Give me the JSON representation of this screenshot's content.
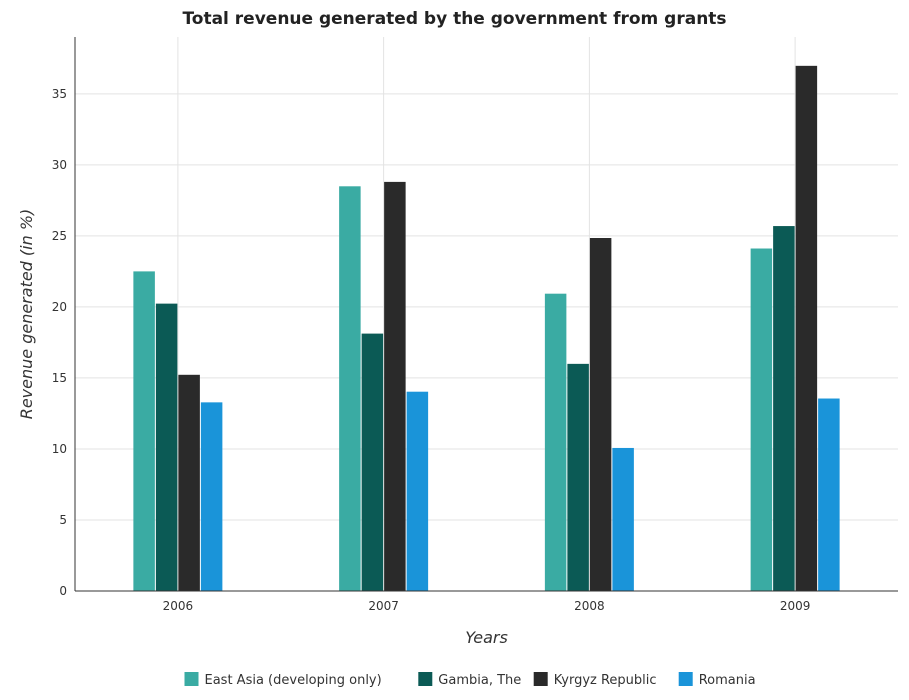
{
  "chart_data": {
    "type": "bar",
    "title": "Total revenue generated by the government from grants",
    "xlabel": "Years",
    "ylabel": "Revenue generated (in %)",
    "categories": [
      "2006",
      "2007",
      "2008",
      "2009"
    ],
    "ylim": [
      0,
      39
    ],
    "yticks": [
      0,
      5,
      10,
      15,
      20,
      25,
      30,
      35
    ],
    "grid": true,
    "legend_position": "bottom",
    "series": [
      {
        "name": "East Asia (developing only)",
        "color": "#3aaba3",
        "values": [
          22.5,
          28.49,
          20.93,
          24.11
        ]
      },
      {
        "name": "Gambia, The",
        "color": "#0b5a55",
        "values": [
          20.23,
          18.12,
          15.99,
          25.69
        ]
      },
      {
        "name": "Kyrgyz Republic",
        "color": "#2a2a2a",
        "values": [
          15.22,
          28.8,
          24.85,
          36.97
        ]
      },
      {
        "name": "Romania",
        "color": "#1a94d9",
        "values": [
          13.28,
          14.03,
          10.07,
          13.55
        ]
      }
    ]
  }
}
